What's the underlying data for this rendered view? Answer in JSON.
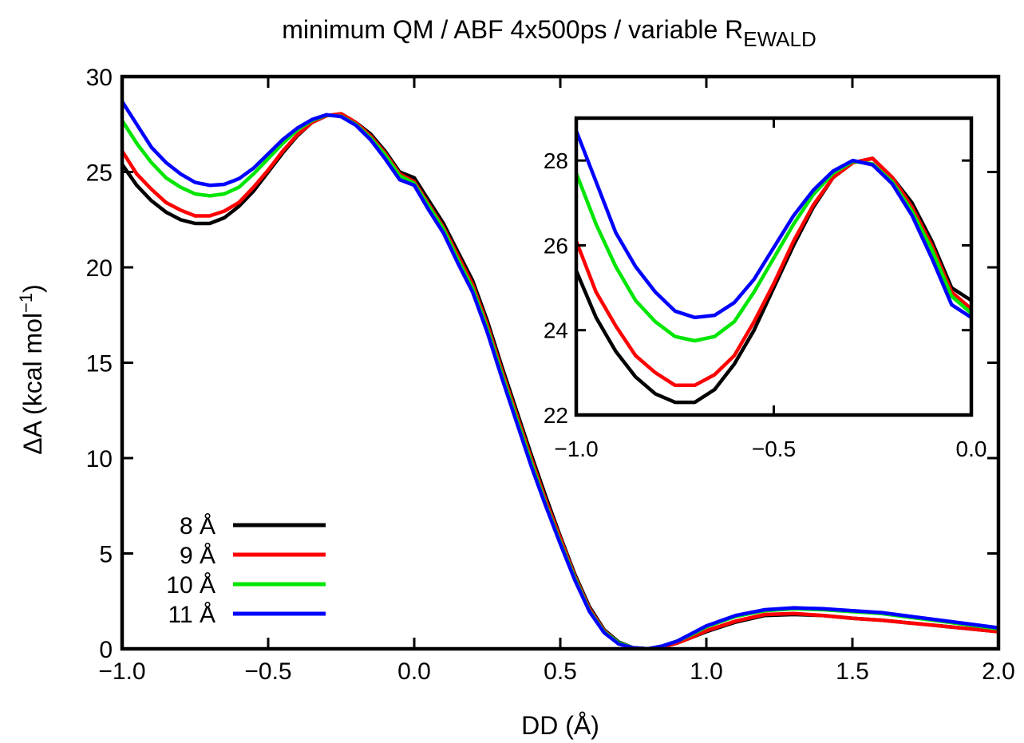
{
  "chart_data": {
    "type": "line",
    "title": "minimum QM / ABF 4x500ps / variable R",
    "title_subscript": "EWALD",
    "xlabel": "DD (Å)",
    "ylabel": "ΔA (kcal mol",
    "ylabel_superscript": "−1",
    "ylabel_suffix": ")",
    "xlim": [
      -1.0,
      2.0
    ],
    "ylim": [
      0,
      30
    ],
    "x_ticks": [
      -1.0,
      -0.5,
      0.0,
      0.5,
      1.0,
      1.5,
      2.0
    ],
    "x_tick_labels": [
      "−1.0",
      "−0.5",
      "0.0",
      "0.5",
      "1.0",
      "1.5",
      "2.0"
    ],
    "y_ticks": [
      0,
      5,
      10,
      15,
      20,
      25,
      30
    ],
    "y_tick_labels": [
      "0",
      "5",
      "10",
      "15",
      "20",
      "25",
      "30"
    ],
    "legend_position": "bottom-left",
    "grid": false,
    "series": [
      {
        "name": "8 Å",
        "color": "#000000",
        "x": [
          -1.0,
          -0.95,
          -0.9,
          -0.85,
          -0.8,
          -0.75,
          -0.7,
          -0.65,
          -0.6,
          -0.55,
          -0.5,
          -0.45,
          -0.4,
          -0.35,
          -0.3,
          -0.25,
          -0.2,
          -0.15,
          -0.1,
          -0.05,
          0.0,
          0.05,
          0.1,
          0.15,
          0.2,
          0.25,
          0.3,
          0.35,
          0.4,
          0.45,
          0.5,
          0.55,
          0.6,
          0.65,
          0.7,
          0.75,
          0.8,
          0.85,
          0.9,
          0.95,
          1.0,
          1.1,
          1.2,
          1.3,
          1.4,
          1.5,
          1.6,
          1.7,
          1.8,
          1.9,
          2.0
        ],
        "y": [
          25.4,
          24.3,
          23.5,
          22.9,
          22.5,
          22.3,
          22.3,
          22.6,
          23.2,
          24.0,
          25.0,
          26.0,
          26.9,
          27.6,
          27.95,
          28.05,
          27.6,
          27.0,
          26.1,
          25.0,
          24.7,
          23.5,
          22.3,
          20.8,
          19.3,
          17.2,
          14.8,
          12.5,
          10.2,
          8.0,
          5.9,
          3.9,
          2.2,
          1.0,
          0.35,
          0.05,
          0.0,
          0.1,
          0.3,
          0.6,
          0.9,
          1.4,
          1.75,
          1.8,
          1.75,
          1.6,
          1.5,
          1.35,
          1.2,
          1.05,
          0.9
        ]
      },
      {
        "name": "9 Å",
        "color": "#ff0000",
        "x": [
          -1.0,
          -0.95,
          -0.9,
          -0.85,
          -0.8,
          -0.75,
          -0.7,
          -0.65,
          -0.6,
          -0.55,
          -0.5,
          -0.45,
          -0.4,
          -0.35,
          -0.3,
          -0.25,
          -0.2,
          -0.15,
          -0.1,
          -0.05,
          0.0,
          0.05,
          0.1,
          0.15,
          0.2,
          0.25,
          0.3,
          0.35,
          0.4,
          0.45,
          0.5,
          0.55,
          0.6,
          0.65,
          0.7,
          0.75,
          0.8,
          0.85,
          0.9,
          0.95,
          1.0,
          1.1,
          1.2,
          1.3,
          1.4,
          1.5,
          1.6,
          1.7,
          1.8,
          1.9,
          2.0
        ],
        "y": [
          26.1,
          24.9,
          24.1,
          23.4,
          23.0,
          22.7,
          22.7,
          22.95,
          23.4,
          24.2,
          25.1,
          26.1,
          26.95,
          27.6,
          27.95,
          28.05,
          27.6,
          26.9,
          26.0,
          24.9,
          24.5,
          23.3,
          22.1,
          20.6,
          19.1,
          17.0,
          14.6,
          12.3,
          10.0,
          7.8,
          5.8,
          3.8,
          2.1,
          0.95,
          0.3,
          0.05,
          0.0,
          0.1,
          0.3,
          0.6,
          0.95,
          1.45,
          1.8,
          1.85,
          1.75,
          1.6,
          1.5,
          1.35,
          1.2,
          1.05,
          0.9
        ]
      },
      {
        "name": "10 Å",
        "color": "#00e600",
        "x": [
          -1.0,
          -0.95,
          -0.9,
          -0.85,
          -0.8,
          -0.75,
          -0.7,
          -0.65,
          -0.6,
          -0.55,
          -0.5,
          -0.45,
          -0.4,
          -0.35,
          -0.3,
          -0.25,
          -0.2,
          -0.15,
          -0.1,
          -0.05,
          0.0,
          0.05,
          0.1,
          0.15,
          0.2,
          0.25,
          0.3,
          0.35,
          0.4,
          0.45,
          0.5,
          0.55,
          0.6,
          0.65,
          0.7,
          0.75,
          0.8,
          0.85,
          0.9,
          0.95,
          1.0,
          1.1,
          1.2,
          1.3,
          1.4,
          1.5,
          1.6,
          1.7,
          1.8,
          1.9,
          2.0
        ],
        "y": [
          27.7,
          26.5,
          25.5,
          24.7,
          24.2,
          23.85,
          23.75,
          23.85,
          24.2,
          24.9,
          25.7,
          26.5,
          27.2,
          27.7,
          27.98,
          27.92,
          27.5,
          26.8,
          25.9,
          24.8,
          24.4,
          23.2,
          22.0,
          20.4,
          18.9,
          16.8,
          14.4,
          12.1,
          9.8,
          7.6,
          5.6,
          3.7,
          2.0,
          0.9,
          0.3,
          0.05,
          0.0,
          0.15,
          0.4,
          0.75,
          1.15,
          1.7,
          2.0,
          2.1,
          2.05,
          1.95,
          1.85,
          1.65,
          1.45,
          1.25,
          1.05
        ]
      },
      {
        "name": "11 Å",
        "color": "#0000ff",
        "x": [
          -1.0,
          -0.95,
          -0.9,
          -0.85,
          -0.8,
          -0.75,
          -0.7,
          -0.65,
          -0.6,
          -0.55,
          -0.5,
          -0.45,
          -0.4,
          -0.35,
          -0.3,
          -0.25,
          -0.2,
          -0.15,
          -0.1,
          -0.05,
          0.0,
          0.05,
          0.1,
          0.15,
          0.2,
          0.25,
          0.3,
          0.35,
          0.4,
          0.45,
          0.5,
          0.55,
          0.6,
          0.65,
          0.7,
          0.75,
          0.8,
          0.85,
          0.9,
          0.95,
          1.0,
          1.1,
          1.2,
          1.3,
          1.4,
          1.5,
          1.6,
          1.7,
          1.8,
          1.9,
          2.0
        ],
        "y": [
          28.7,
          27.5,
          26.3,
          25.5,
          24.9,
          24.45,
          24.3,
          24.35,
          24.65,
          25.2,
          25.95,
          26.7,
          27.3,
          27.75,
          28.0,
          27.9,
          27.45,
          26.7,
          25.7,
          24.6,
          24.3,
          23.0,
          21.8,
          20.2,
          18.7,
          16.6,
          14.2,
          11.9,
          9.6,
          7.5,
          5.5,
          3.6,
          1.95,
          0.85,
          0.25,
          0.05,
          0.0,
          0.15,
          0.4,
          0.8,
          1.2,
          1.75,
          2.05,
          2.15,
          2.1,
          2.0,
          1.9,
          1.7,
          1.5,
          1.3,
          1.1
        ]
      }
    ],
    "inset": {
      "xlim": [
        -1.0,
        0.0
      ],
      "ylim": [
        22,
        29
      ],
      "x_ticks": [
        -1.0,
        -0.5,
        0.0
      ],
      "x_tick_labels": [
        "−1.0",
        "−0.5",
        "0.0"
      ],
      "y_ticks": [
        22,
        24,
        26,
        28
      ],
      "y_tick_labels": [
        "22",
        "24",
        "26",
        "28"
      ]
    }
  }
}
